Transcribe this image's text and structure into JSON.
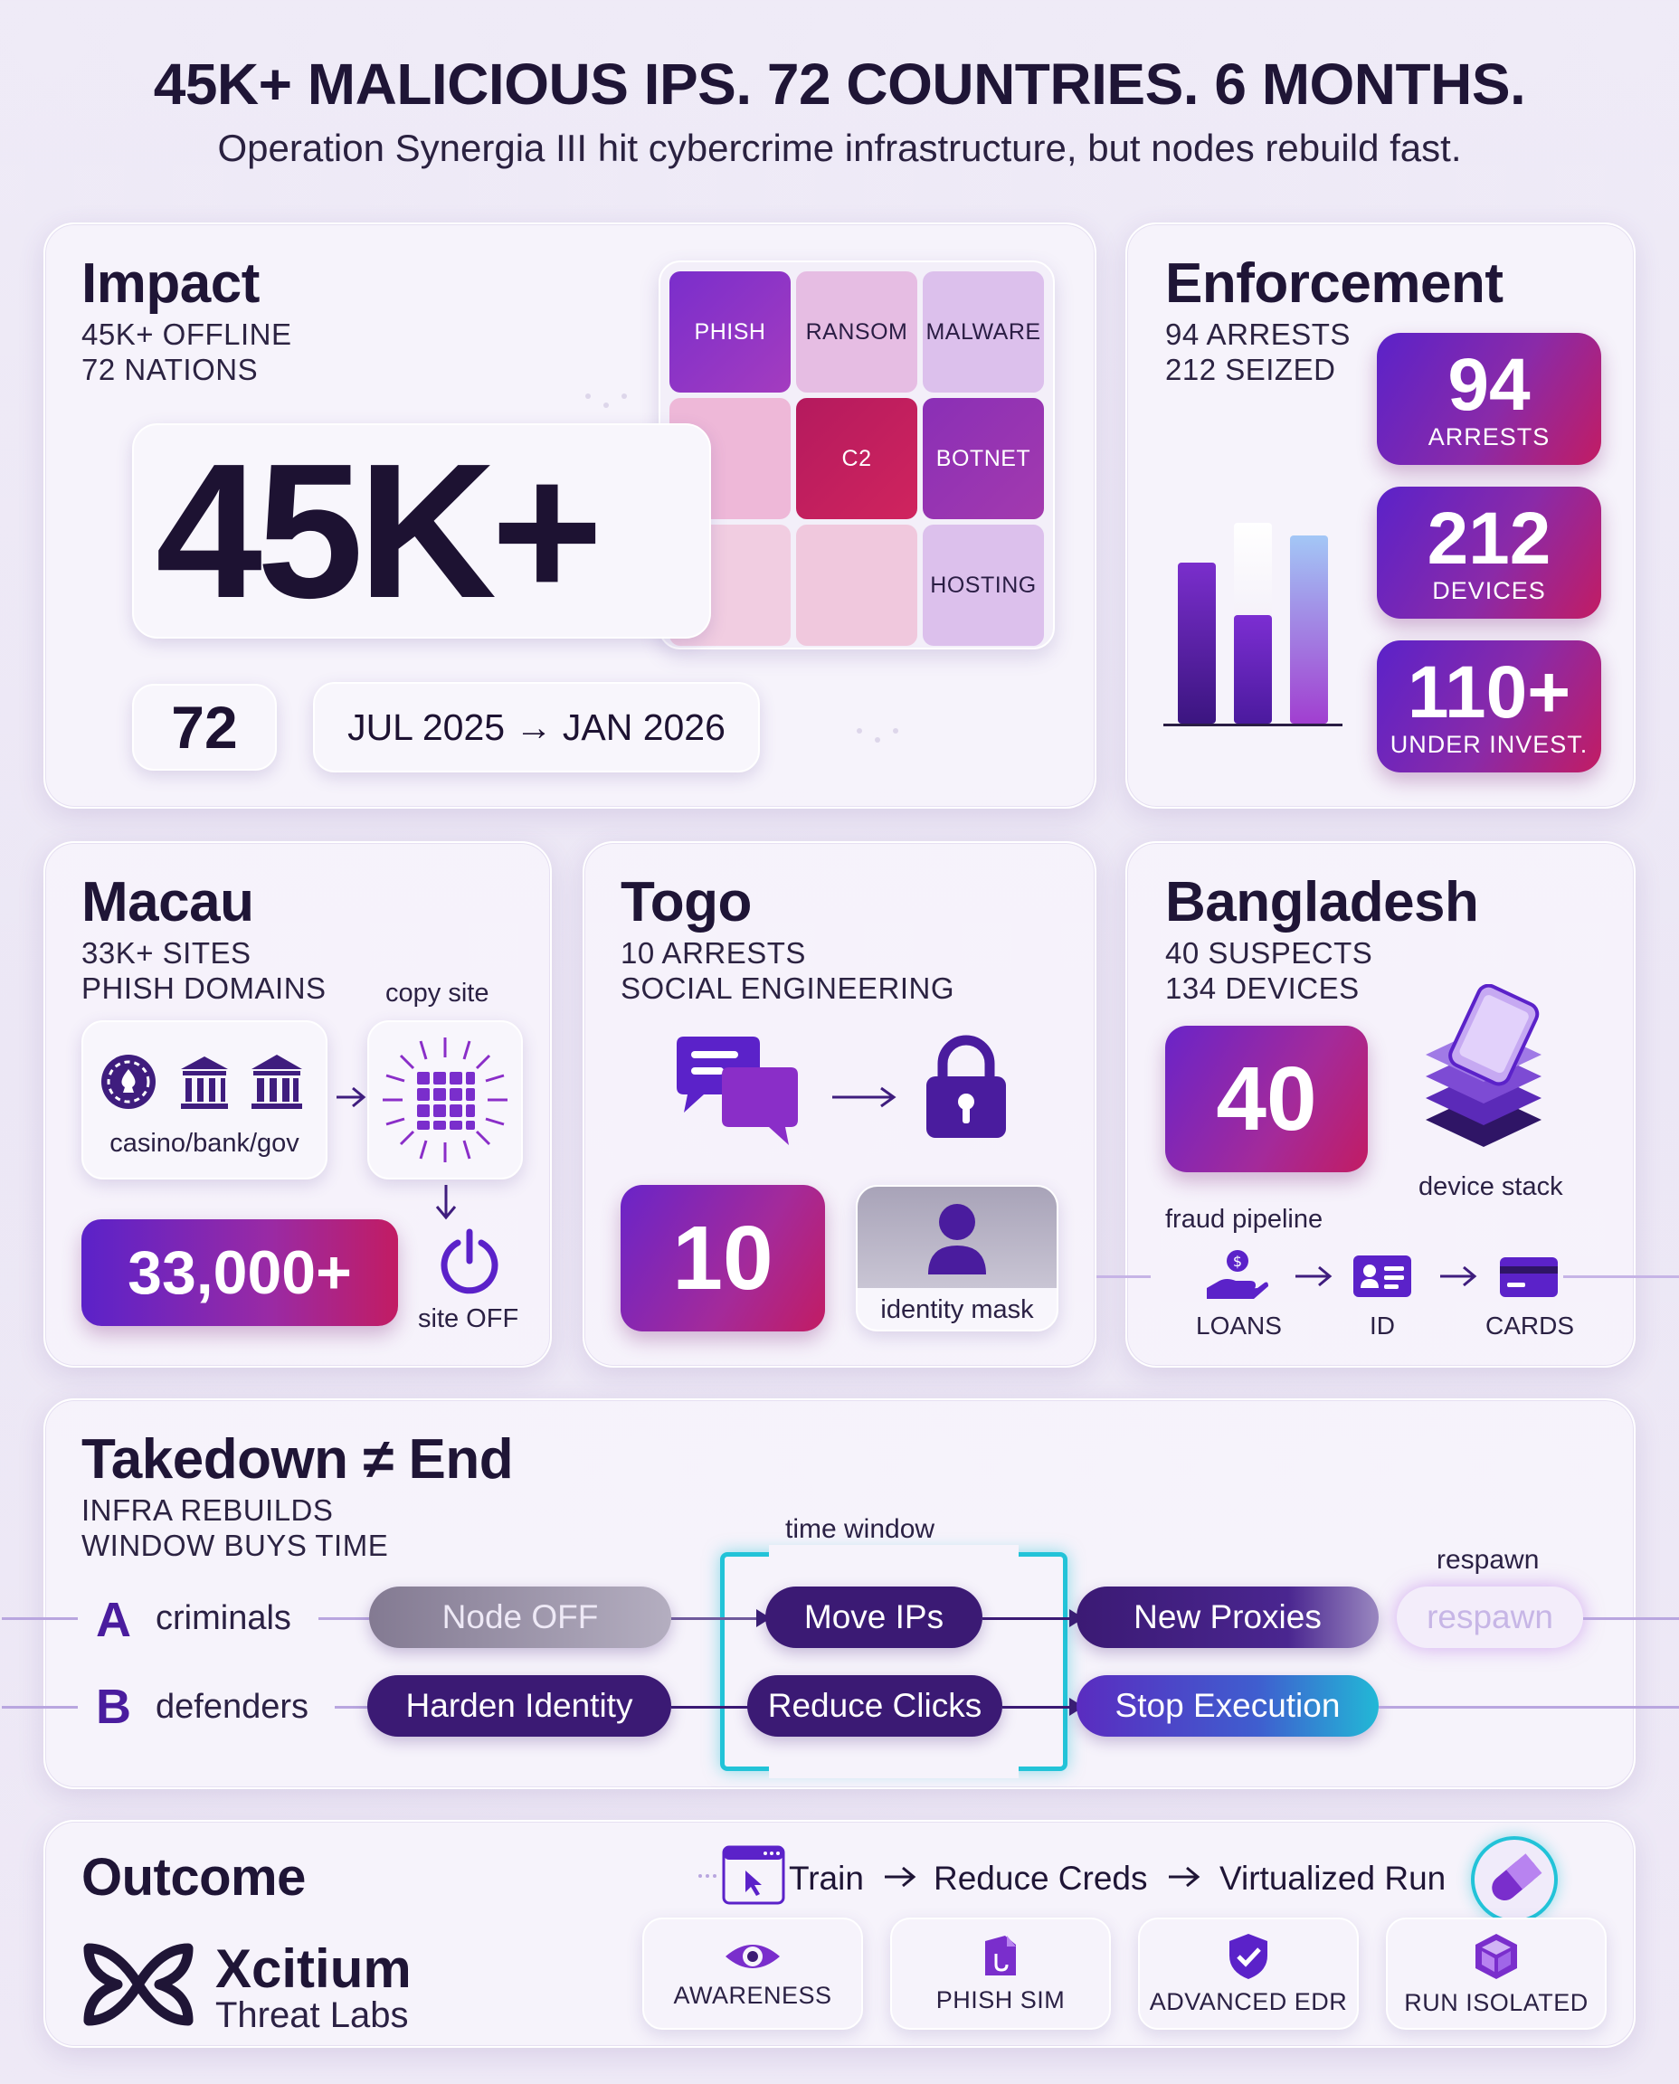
{
  "header": {
    "title": "45K+ MALICIOUS IPS. 72 COUNTRIES. 6 MONTHS.",
    "subtitle": "Operation Synergia III hit cybercrime infrastructure, but nodes rebuild fast."
  },
  "impact": {
    "title": "Impact",
    "line1": "45K+ OFFLINE",
    "line2": "72 NATIONS",
    "big_number": "45K+",
    "countries": "72",
    "period": "JUL 2025 → JAN 2026",
    "tiles": [
      "PHISH",
      "RANSOM",
      "MALWARE",
      "C2",
      "BOTNET",
      "HOSTING"
    ]
  },
  "enforcement": {
    "title": "Enforcement",
    "line1": "94 ARRESTS",
    "line2": "212 SEIZED",
    "stats": [
      {
        "value": "94",
        "label": "ARRESTS"
      },
      {
        "value": "212",
        "label": "DEVICES"
      },
      {
        "value": "110+",
        "label": "UNDER INVEST."
      }
    ]
  },
  "macau": {
    "title": "Macau",
    "line1": "33K+ SITES",
    "line2": "PHISH DOMAINS",
    "copy_label": "copy site",
    "targets_label": "casino/bank/gov",
    "count": "33,000+",
    "off_label": "site OFF"
  },
  "togo": {
    "title": "Togo",
    "line1": "10 ARRESTS",
    "line2": "SOCIAL ENGINEERING",
    "count": "10",
    "mask_label": "identity mask"
  },
  "bangladesh": {
    "title": "Bangladesh",
    "line1": "40 SUSPECTS",
    "line2": "134 DEVICES",
    "count": "40",
    "stack_label": "device stack",
    "pipeline_label": "fraud pipeline",
    "pipeline": [
      "LOANS",
      "ID",
      "CARDS"
    ]
  },
  "takedown": {
    "title": "Takedown ≠ End",
    "line1": "INFRA REBUILDS",
    "line2": "WINDOW BUYS TIME",
    "window_label": "time window",
    "respawn_label": "respawn",
    "row_a": {
      "letter": "A",
      "name": "criminals",
      "steps": [
        "Node OFF",
        "Move IPs",
        "New Proxies",
        "respawn"
      ]
    },
    "row_b": {
      "letter": "B",
      "name": "defenders",
      "steps": [
        "Harden Identity",
        "Reduce Clicks",
        "Stop Execution"
      ]
    }
  },
  "outcome": {
    "title": "Outcome",
    "brand": "Xcitium",
    "brand_sub": "Threat Labs",
    "flow": [
      "Train",
      "Reduce Creds",
      "Virtualized Run"
    ],
    "chips": [
      "AWARENESS",
      "PHISH SIM",
      "ADVANCED EDR",
      "RUN ISOLATED"
    ]
  },
  "colors": {
    "navy": "#1f1536",
    "purple": "#5b22c9",
    "magenta": "#c21c63",
    "cyan": "#22c3d8"
  }
}
